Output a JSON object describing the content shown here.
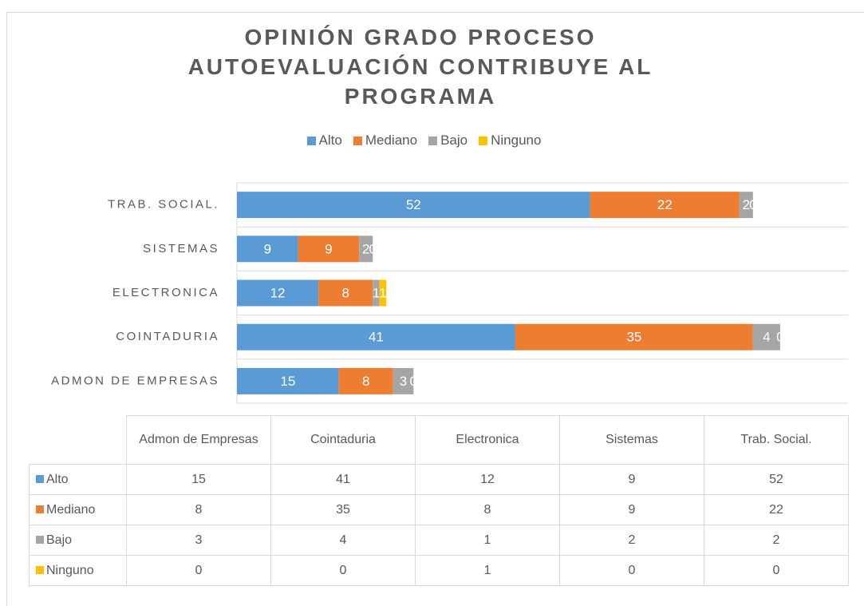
{
  "chart_data": {
    "type": "stacked_bar_horizontal",
    "title": "OPINIÓN GRADO PROCESO AUTOEVALUACIÓN CONTRIBUYE AL PROGRAMA",
    "categories": [
      "Admon de Empresas",
      "Cointaduria",
      "Electronica",
      "Sistemas",
      "Trab. Social."
    ],
    "series": [
      {
        "name": "Alto",
        "color": "#5b9bd5",
        "values": [
          15,
          41,
          12,
          9,
          52
        ]
      },
      {
        "name": "Mediano",
        "color": "#ed7d31",
        "values": [
          8,
          35,
          8,
          9,
          22
        ]
      },
      {
        "name": "Bajo",
        "color": "#a5a5a5",
        "values": [
          3,
          4,
          1,
          2,
          2
        ]
      },
      {
        "name": "Ninguno",
        "color": "#ffc000",
        "values": [
          0,
          0,
          1,
          0,
          0
        ]
      }
    ],
    "xlim": [
      0,
      90
    ],
    "legend": "top",
    "data_table": true
  }
}
